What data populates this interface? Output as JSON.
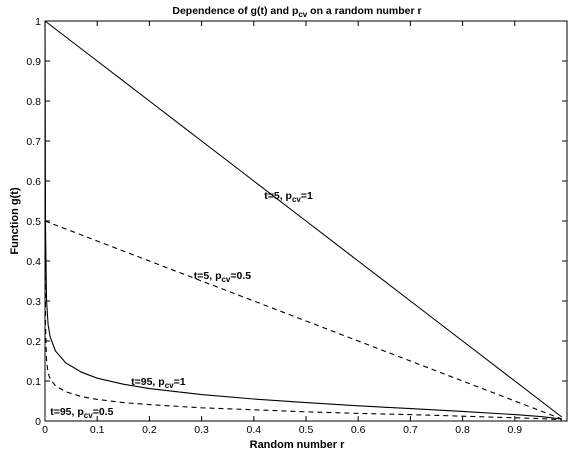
{
  "chart_data": {
    "type": "line",
    "title": {
      "pre": "Dependence of g(t) and p",
      "sub": "cv",
      "post": " on a random number r"
    },
    "xlabel": "Random number r",
    "ylabel": "Function g(t)",
    "xlim": [
      0,
      1
    ],
    "ylim": [
      0,
      1
    ],
    "xticks": [
      0,
      0.1,
      0.2,
      0.3,
      0.4,
      0.5,
      0.6,
      0.7,
      0.8,
      0.9
    ],
    "xtick_labels": [
      "0",
      "0.1",
      "0.2",
      "0.3",
      "0.4",
      "0.5",
      "0.6",
      "0.7",
      "0.8",
      "0.9"
    ],
    "yticks": [
      0,
      0.1,
      0.2,
      0.3,
      0.4,
      0.5,
      0.6,
      0.7,
      0.8,
      0.9,
      1
    ],
    "ytick_labels": [
      "0",
      "0.1",
      "0.2",
      "0.3",
      "0.4",
      "0.5",
      "0.6",
      "0.7",
      "0.8",
      "0.9",
      "1"
    ],
    "grid": false,
    "legend": "none",
    "series": [
      {
        "t": 5,
        "pcv": 1,
        "style": "solid",
        "x": [
          0,
          0.1,
          0.2,
          0.3,
          0.4,
          0.5,
          0.6,
          0.7,
          0.8,
          0.9,
          0.99
        ],
        "y": [
          1,
          0.9,
          0.8,
          0.7,
          0.6,
          0.5,
          0.4,
          0.3,
          0.2,
          0.1,
          0.01
        ]
      },
      {
        "t": 5,
        "pcv": 0.5,
        "style": "dashed",
        "x": [
          0,
          0.1,
          0.2,
          0.3,
          0.4,
          0.5,
          0.6,
          0.7,
          0.8,
          0.9,
          0.99
        ],
        "y": [
          0.5,
          0.45,
          0.4,
          0.35,
          0.3,
          0.25,
          0.2,
          0.15,
          0.1,
          0.05,
          0.005
        ]
      },
      {
        "t": 95,
        "pcv": 1,
        "style": "solid",
        "x": [
          0,
          0.001,
          0.003,
          0.006,
          0.01,
          0.02,
          0.04,
          0.07,
          0.1,
          0.15,
          0.2,
          0.3,
          0.4,
          0.5,
          0.6,
          0.7,
          0.8,
          0.9,
          0.95,
          0.99
        ],
        "y": [
          1,
          0.48,
          0.3,
          0.24,
          0.21,
          0.175,
          0.145,
          0.122,
          0.107,
          0.092,
          0.081,
          0.066,
          0.055,
          0.046,
          0.038,
          0.031,
          0.024,
          0.016,
          0.011,
          0.005
        ]
      },
      {
        "t": 95,
        "pcv": 0.5,
        "style": "dashed",
        "x": [
          0,
          0.001,
          0.003,
          0.006,
          0.01,
          0.02,
          0.04,
          0.07,
          0.1,
          0.15,
          0.2,
          0.3,
          0.4,
          0.5,
          0.6,
          0.7,
          0.8,
          0.9,
          0.95,
          0.99
        ],
        "y": [
          0.5,
          0.24,
          0.15,
          0.12,
          0.105,
          0.088,
          0.073,
          0.061,
          0.054,
          0.046,
          0.041,
          0.033,
          0.028,
          0.023,
          0.019,
          0.016,
          0.012,
          0.008,
          0.006,
          0.003
        ]
      }
    ],
    "annotations": [
      {
        "pre": "t=5, p",
        "sub": "cv",
        "post": "=1",
        "x": 0.42,
        "y": 0.555
      },
      {
        "pre": "t=5, p",
        "sub": "cv",
        "post": "=0.5",
        "x": 0.285,
        "y": 0.355
      },
      {
        "pre": "t=95, p",
        "sub": "cv",
        "post": "=1",
        "x": 0.165,
        "y": 0.09
      },
      {
        "pre": "t=95, p",
        "sub": "cv",
        "post": "=0.5",
        "x": 0.01,
        "y": 0.015
      }
    ]
  }
}
